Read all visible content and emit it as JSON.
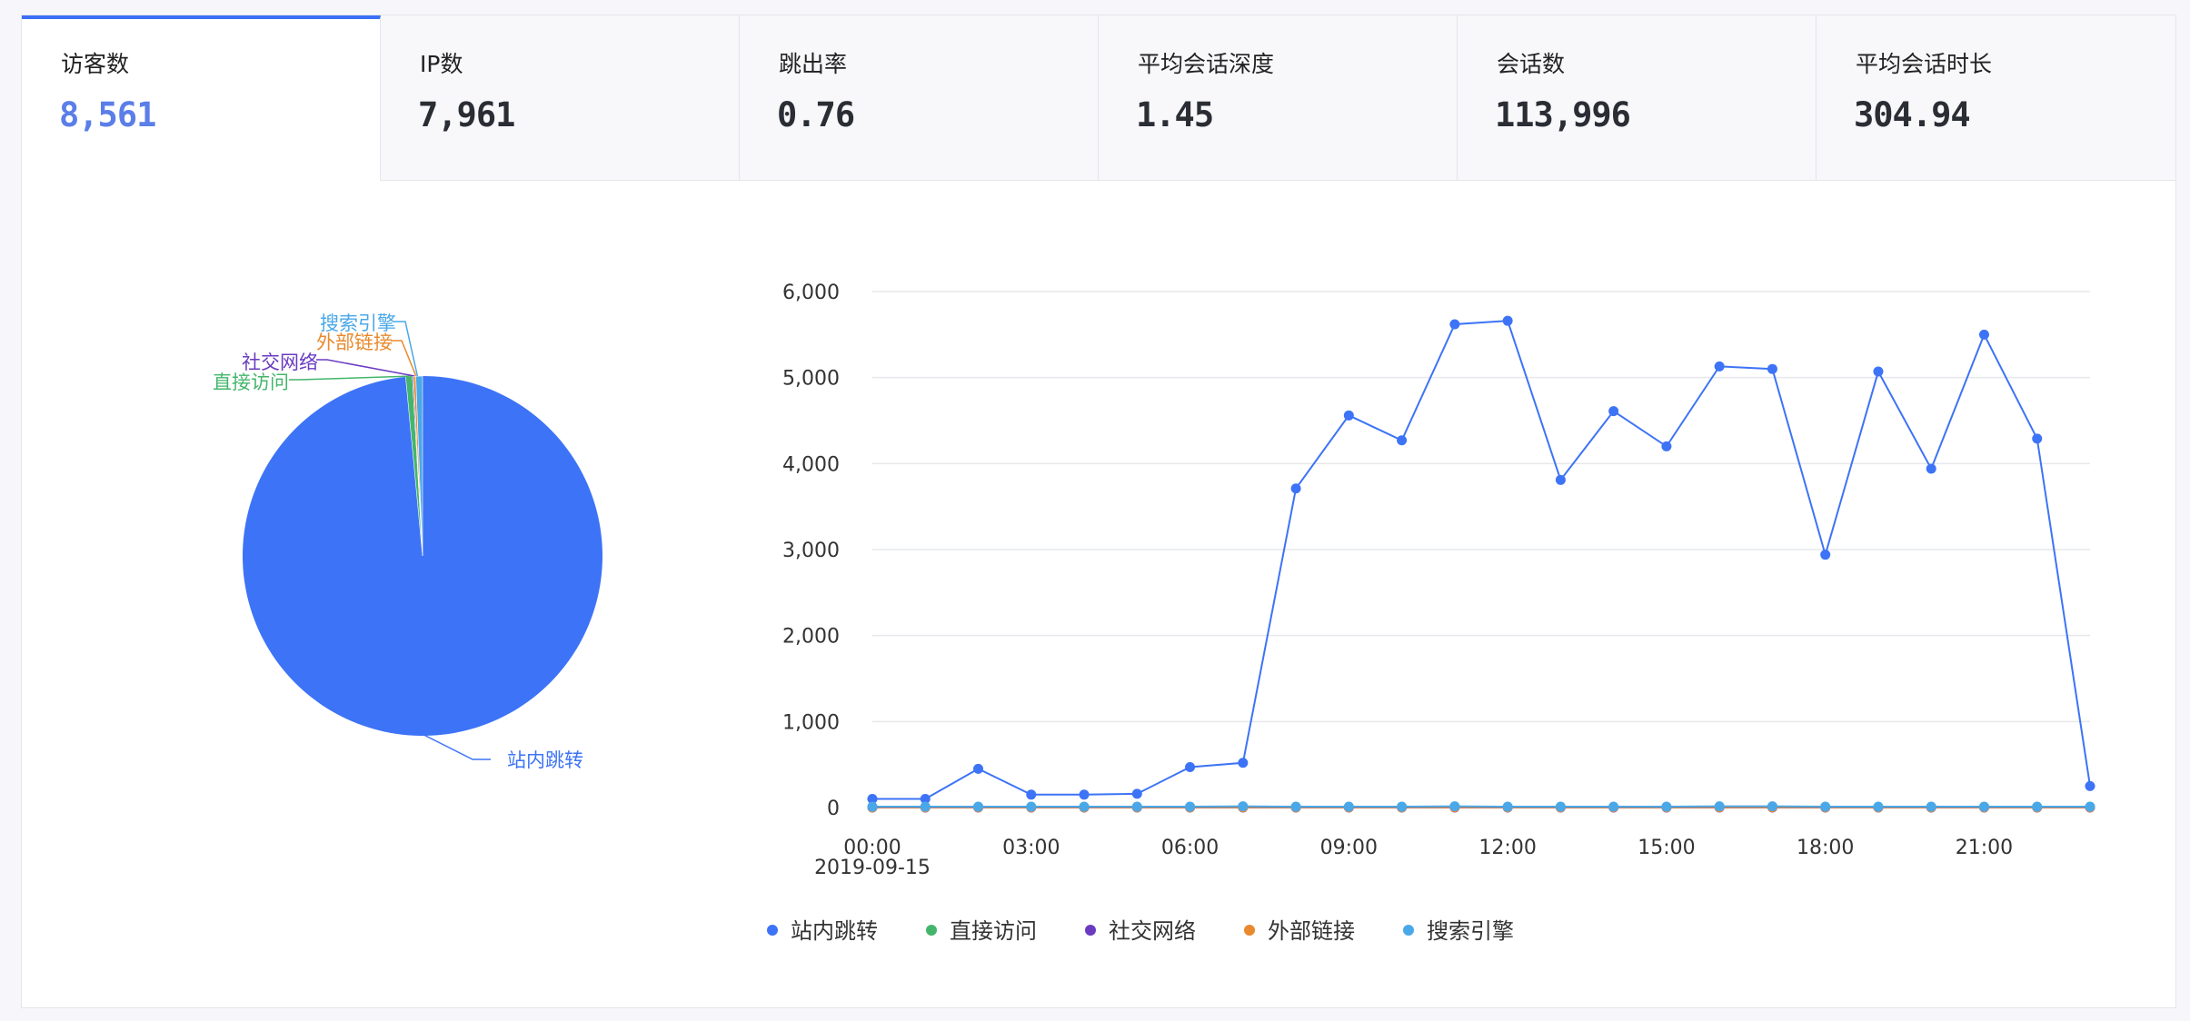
{
  "tabs": [
    {
      "label": "访客数",
      "value": "8,561",
      "active": true
    },
    {
      "label": "IP数",
      "value": "7,961",
      "active": false
    },
    {
      "label": "跳出率",
      "value": "0.76",
      "active": false
    },
    {
      "label": "平均会话深度",
      "value": "1.45",
      "active": false
    },
    {
      "label": "会话数",
      "value": "113,996",
      "active": false
    },
    {
      "label": "平均会话时长",
      "value": "304.94",
      "active": false
    }
  ],
  "colors": {
    "active_tab_border": "#3b6ff6",
    "active_value": "#5b7ee8"
  },
  "chart_data": [
    {
      "type": "pie",
      "slices": [
        {
          "name": "站内跳转",
          "value": 0.985,
          "color": "#3d73f6"
        },
        {
          "name": "直接访问",
          "value": 0.006,
          "color": "#43b66b"
        },
        {
          "name": "社交网络",
          "value": 0.001,
          "color": "#6a3bc1"
        },
        {
          "name": "外部链接",
          "value": 0.002,
          "color": "#e88a2d"
        },
        {
          "name": "搜索引擎",
          "value": 0.006,
          "color": "#4aa8e8"
        }
      ]
    },
    {
      "type": "line",
      "x": [
        "00:00",
        "01:00",
        "02:00",
        "03:00",
        "04:00",
        "05:00",
        "06:00",
        "07:00",
        "08:00",
        "09:00",
        "10:00",
        "11:00",
        "12:00",
        "13:00",
        "14:00",
        "15:00",
        "16:00",
        "17:00",
        "18:00",
        "19:00",
        "20:00",
        "21:00",
        "22:00",
        "23:00"
      ],
      "x_tick_labels": [
        "00:00",
        "03:00",
        "06:00",
        "09:00",
        "12:00",
        "15:00",
        "18:00",
        "21:00"
      ],
      "x_sub_label": "2019-09-15",
      "y_tick_labels": [
        "0",
        "1,000",
        "2,000",
        "3,000",
        "4,000",
        "5,000",
        "6,000"
      ],
      "ylim": [
        0,
        6000
      ],
      "grid": true,
      "legend_position": "bottom",
      "series": [
        {
          "name": "站内跳转",
          "color": "#3d73f6",
          "values": [
            100,
            100,
            450,
            150,
            150,
            160,
            470,
            520,
            3710,
            4560,
            4270,
            5620,
            5660,
            3810,
            4610,
            4200,
            5130,
            5100,
            2940,
            5070,
            3940,
            5500,
            4290,
            250
          ]
        },
        {
          "name": "直接访问",
          "color": "#43b66b",
          "values": [
            5,
            5,
            5,
            5,
            5,
            5,
            5,
            10,
            5,
            5,
            5,
            10,
            5,
            5,
            5,
            5,
            10,
            10,
            5,
            5,
            5,
            5,
            5,
            5
          ]
        },
        {
          "name": "社交网络",
          "color": "#6a3bc1",
          "values": [
            0,
            0,
            0,
            0,
            0,
            0,
            0,
            0,
            0,
            0,
            0,
            0,
            0,
            0,
            0,
            0,
            0,
            0,
            0,
            0,
            0,
            0,
            0,
            0
          ]
        },
        {
          "name": "外部链接",
          "color": "#e88a2d",
          "values": [
            2,
            2,
            2,
            2,
            2,
            2,
            2,
            3,
            2,
            2,
            2,
            3,
            2,
            2,
            2,
            2,
            3,
            3,
            2,
            2,
            2,
            2,
            2,
            2
          ]
        },
        {
          "name": "搜索引擎",
          "color": "#4aa8e8",
          "values": [
            10,
            10,
            10,
            10,
            10,
            10,
            10,
            15,
            10,
            10,
            10,
            15,
            10,
            10,
            10,
            10,
            15,
            15,
            10,
            10,
            10,
            10,
            10,
            10
          ]
        }
      ]
    }
  ]
}
